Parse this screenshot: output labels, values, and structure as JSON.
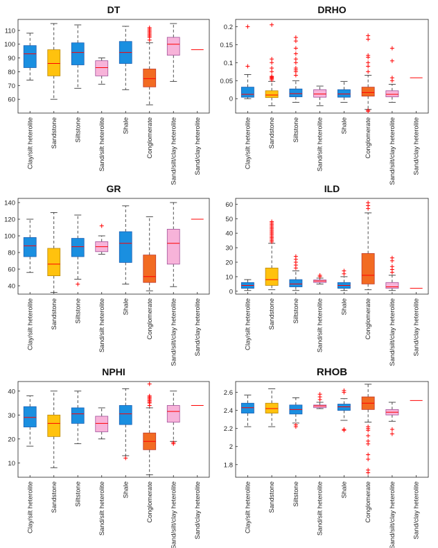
{
  "categories": [
    "Clay/silt heterolite",
    "Sandstone",
    "Siltstone",
    "Sand/silt heterolite",
    "Shale",
    "Conglomerate",
    "Sand/silt/clay heterolite",
    "Sand/clay heterolite"
  ],
  "colors": {
    "blue": "#1a8fe0",
    "yellow": "#ffc20e",
    "pink": "#f7b3d9",
    "orange": "#f26b22",
    "median": "#ff0000",
    "outlier": "#ff0000",
    "axis": "#000000"
  },
  "chart_data": [
    {
      "type": "box",
      "title": "DT",
      "ylim": [
        50,
        118
      ],
      "yticks": [
        60,
        70,
        80,
        90,
        100,
        110
      ],
      "boxes": [
        {
          "color": "blue",
          "whislo": 74,
          "q1": 83,
          "med": 93,
          "q3": 99,
          "whishi": 108,
          "fliers": []
        },
        {
          "color": "yellow",
          "whislo": 60,
          "q1": 77,
          "med": 86,
          "q3": 96,
          "whishi": 115,
          "fliers": []
        },
        {
          "color": "blue",
          "whislo": 68,
          "q1": 85,
          "med": 94,
          "q3": 101,
          "whishi": 114,
          "fliers": []
        },
        {
          "color": "pink",
          "whislo": 71,
          "q1": 77,
          "med": 83,
          "q3": 88,
          "whishi": 90,
          "fliers": []
        },
        {
          "color": "blue",
          "whislo": 67,
          "q1": 86,
          "med": 94,
          "q3": 102,
          "whishi": 113,
          "fliers": []
        },
        {
          "color": "orange",
          "whislo": 56,
          "q1": 69,
          "med": 75,
          "q3": 82,
          "whishi": 101,
          "fliers": [
            103,
            105,
            106,
            107,
            108,
            109,
            110,
            111,
            112
          ]
        },
        {
          "color": "pink",
          "whislo": 73,
          "q1": 92,
          "med": 100,
          "q3": 105,
          "whishi": 115,
          "fliers": []
        },
        {
          "color": "none",
          "whislo": 96,
          "q1": 96,
          "med": 96,
          "q3": 96,
          "whishi": 96,
          "fliers": []
        }
      ]
    },
    {
      "type": "box",
      "title": "DRHO",
      "ylim": [
        -0.04,
        0.22
      ],
      "yticks": [
        0,
        0.05,
        0.1,
        0.15,
        0.2
      ],
      "boxes": [
        {
          "color": "blue",
          "whislo": 0.0,
          "q1": 0.004,
          "med": 0.012,
          "q3": 0.032,
          "whishi": 0.067,
          "fliers": [
            0.09,
            0.2
          ]
        },
        {
          "color": "yellow",
          "whislo": -0.02,
          "q1": 0.003,
          "med": 0.01,
          "q3": 0.022,
          "whishi": 0.048,
          "fliers": [
            0.052,
            0.055,
            0.058,
            0.06,
            0.062,
            0.075,
            0.085,
            0.1,
            0.11,
            0.205
          ]
        },
        {
          "color": "blue",
          "whislo": -0.01,
          "q1": 0.005,
          "med": 0.014,
          "q3": 0.027,
          "whishi": 0.05,
          "fliers": [
            0.065,
            0.075,
            0.08,
            0.085,
            0.1,
            0.11,
            0.125,
            0.14,
            0.16,
            0.17
          ]
        },
        {
          "color": "pink",
          "whislo": -0.02,
          "q1": 0.004,
          "med": 0.013,
          "q3": 0.025,
          "whishi": 0.035,
          "fliers": []
        },
        {
          "color": "blue",
          "whislo": -0.01,
          "q1": 0.004,
          "med": 0.013,
          "q3": 0.025,
          "whishi": 0.048,
          "fliers": []
        },
        {
          "color": "orange",
          "whislo": -0.03,
          "q1": 0.007,
          "med": 0.017,
          "q3": 0.032,
          "whishi": 0.065,
          "fliers": [
            -0.035,
            -0.032,
            0.075,
            0.09,
            0.1,
            0.115,
            0.12,
            0.165,
            0.175
          ]
        },
        {
          "color": "pink",
          "whislo": -0.01,
          "q1": 0.005,
          "med": 0.012,
          "q3": 0.022,
          "whishi": 0.04,
          "fliers": [
            0.05,
            0.058,
            0.105,
            0.14
          ]
        },
        {
          "color": "none",
          "whislo": 0.058,
          "q1": 0.058,
          "med": 0.058,
          "q3": 0.058,
          "whishi": 0.058,
          "fliers": []
        }
      ]
    },
    {
      "type": "box",
      "title": "GR",
      "ylim": [
        30,
        145
      ],
      "yticks": [
        40,
        60,
        80,
        100,
        120,
        140
      ],
      "boxes": [
        {
          "color": "blue",
          "whislo": 56,
          "q1": 75,
          "med": 88,
          "q3": 98,
          "whishi": 120,
          "fliers": []
        },
        {
          "color": "yellow",
          "whislo": 32,
          "q1": 52,
          "med": 66,
          "q3": 85,
          "whishi": 128,
          "fliers": []
        },
        {
          "color": "blue",
          "whislo": 48,
          "q1": 75,
          "med": 87,
          "q3": 97,
          "whishi": 125,
          "fliers": [
            42
          ]
        },
        {
          "color": "pink",
          "whislo": 78,
          "q1": 81,
          "med": 87,
          "q3": 93,
          "whishi": 100,
          "fliers": [
            112
          ]
        },
        {
          "color": "blue",
          "whislo": 42,
          "q1": 68,
          "med": 91,
          "q3": 105,
          "whishi": 136,
          "fliers": []
        },
        {
          "color": "orange",
          "whislo": 34,
          "q1": 44,
          "med": 51,
          "q3": 77,
          "whishi": 123,
          "fliers": []
        },
        {
          "color": "pink",
          "whislo": 39,
          "q1": 66,
          "med": 91,
          "q3": 108,
          "whishi": 140,
          "fliers": []
        },
        {
          "color": "none",
          "whislo": 120,
          "q1": 120,
          "med": 120,
          "q3": 120,
          "whishi": 120,
          "fliers": []
        }
      ]
    },
    {
      "type": "box",
      "title": "ILD",
      "ylim": [
        -2,
        64
      ],
      "yticks": [
        0,
        10,
        20,
        30,
        40,
        50,
        60
      ],
      "boxes": [
        {
          "color": "blue",
          "whislo": 0.5,
          "q1": 2,
          "med": 4,
          "q3": 6,
          "whishi": 8,
          "fliers": []
        },
        {
          "color": "yellow",
          "whislo": 1,
          "q1": 4,
          "med": 8,
          "q3": 16,
          "whishi": 33,
          "fliers": [
            34,
            35,
            36,
            37,
            38,
            39,
            40,
            41,
            42,
            43,
            44,
            45,
            46,
            47,
            48
          ]
        },
        {
          "color": "blue",
          "whislo": 0.5,
          "q1": 3,
          "med": 5,
          "q3": 8,
          "whishi": 14,
          "fliers": [
            16,
            18,
            20,
            22,
            24
          ]
        },
        {
          "color": "pink",
          "whislo": 5,
          "q1": 6,
          "med": 7,
          "q3": 7.8,
          "whishi": 9,
          "fliers": [
            10,
            11
          ]
        },
        {
          "color": "blue",
          "whislo": 0.5,
          "q1": 2,
          "med": 4,
          "q3": 6,
          "whishi": 10,
          "fliers": [
            12,
            14
          ]
        },
        {
          "color": "orange",
          "whislo": 1,
          "q1": 5,
          "med": 11,
          "q3": 26,
          "whishi": 54,
          "fliers": [
            57,
            59,
            61
          ]
        },
        {
          "color": "pink",
          "whislo": 0.5,
          "q1": 2,
          "med": 3,
          "q3": 6,
          "whishi": 11,
          "fliers": [
            13,
            15,
            17,
            21,
            23
          ]
        },
        {
          "color": "none",
          "whislo": 2,
          "q1": 2,
          "med": 2,
          "q3": 2,
          "whishi": 2,
          "fliers": []
        }
      ]
    },
    {
      "type": "box",
      "title": "NPHI",
      "ylim": [
        4,
        44
      ],
      "yticks": [
        10,
        20,
        30,
        40
      ],
      "boxes": [
        {
          "color": "blue",
          "whislo": 17,
          "q1": 25,
          "med": 29,
          "q3": 33.5,
          "whishi": 38,
          "fliers": []
        },
        {
          "color": "yellow",
          "whislo": 8,
          "q1": 21,
          "med": 26.5,
          "q3": 30,
          "whishi": 40,
          "fliers": []
        },
        {
          "color": "blue",
          "whislo": 18,
          "q1": 26.5,
          "med": 30.5,
          "q3": 33,
          "whishi": 40,
          "fliers": []
        },
        {
          "color": "pink",
          "whislo": 20,
          "q1": 23,
          "med": 26.5,
          "q3": 29.5,
          "whishi": 33,
          "fliers": []
        },
        {
          "color": "blue",
          "whislo": 13,
          "q1": 26,
          "med": 30.5,
          "q3": 34,
          "whishi": 41,
          "fliers": [
            12
          ]
        },
        {
          "color": "orange",
          "whislo": 5,
          "q1": 15.5,
          "med": 19,
          "q3": 22.5,
          "whishi": 33,
          "fliers": [
            34,
            35,
            35.5,
            36,
            36.5,
            37,
            37.5,
            38,
            43
          ]
        },
        {
          "color": "pink",
          "whislo": 19,
          "q1": 27,
          "med": 31.5,
          "q3": 34,
          "whishi": 40,
          "fliers": [
            18,
            18.5
          ]
        },
        {
          "color": "none",
          "whislo": 34,
          "q1": 34,
          "med": 34,
          "q3": 34,
          "whishi": 34,
          "fliers": []
        }
      ]
    },
    {
      "type": "box",
      "title": "RHOB",
      "ylim": [
        1.66,
        2.72
      ],
      "yticks": [
        1.8,
        2,
        2.2,
        2.4,
        2.6
      ],
      "boxes": [
        {
          "color": "blue",
          "whislo": 2.22,
          "q1": 2.37,
          "med": 2.43,
          "q3": 2.48,
          "whishi": 2.57,
          "fliers": []
        },
        {
          "color": "yellow",
          "whislo": 2.22,
          "q1": 2.37,
          "med": 2.42,
          "q3": 2.48,
          "whishi": 2.64,
          "fliers": []
        },
        {
          "color": "blue",
          "whislo": 2.26,
          "q1": 2.36,
          "med": 2.41,
          "q3": 2.46,
          "whishi": 2.54,
          "fliers": [
            2.22,
            2.24
          ]
        },
        {
          "color": "pink",
          "whislo": 2.42,
          "q1": 2.43,
          "med": 2.45,
          "q3": 2.46,
          "whishi": 2.49,
          "fliers": [
            2.52,
            2.55,
            2.58
          ]
        },
        {
          "color": "blue",
          "whislo": 2.29,
          "q1": 2.4,
          "med": 2.44,
          "q3": 2.47,
          "whishi": 2.53,
          "fliers": [
            2.18,
            2.19,
            2.6,
            2.62
          ]
        },
        {
          "color": "orange",
          "whislo": 2.27,
          "q1": 2.41,
          "med": 2.48,
          "q3": 2.55,
          "whishi": 2.69,
          "fliers": [
            1.71,
            1.74,
            1.86,
            1.91,
            2.03,
            2.06,
            2.12,
            2.18,
            2.2,
            2.22
          ]
        },
        {
          "color": "pink",
          "whislo": 2.28,
          "q1": 2.35,
          "med": 2.38,
          "q3": 2.41,
          "whishi": 2.49,
          "fliers": [
            2.14,
            2.19
          ]
        },
        {
          "color": "none",
          "whislo": 2.51,
          "q1": 2.51,
          "med": 2.51,
          "q3": 2.51,
          "whishi": 2.51,
          "fliers": []
        }
      ]
    }
  ]
}
